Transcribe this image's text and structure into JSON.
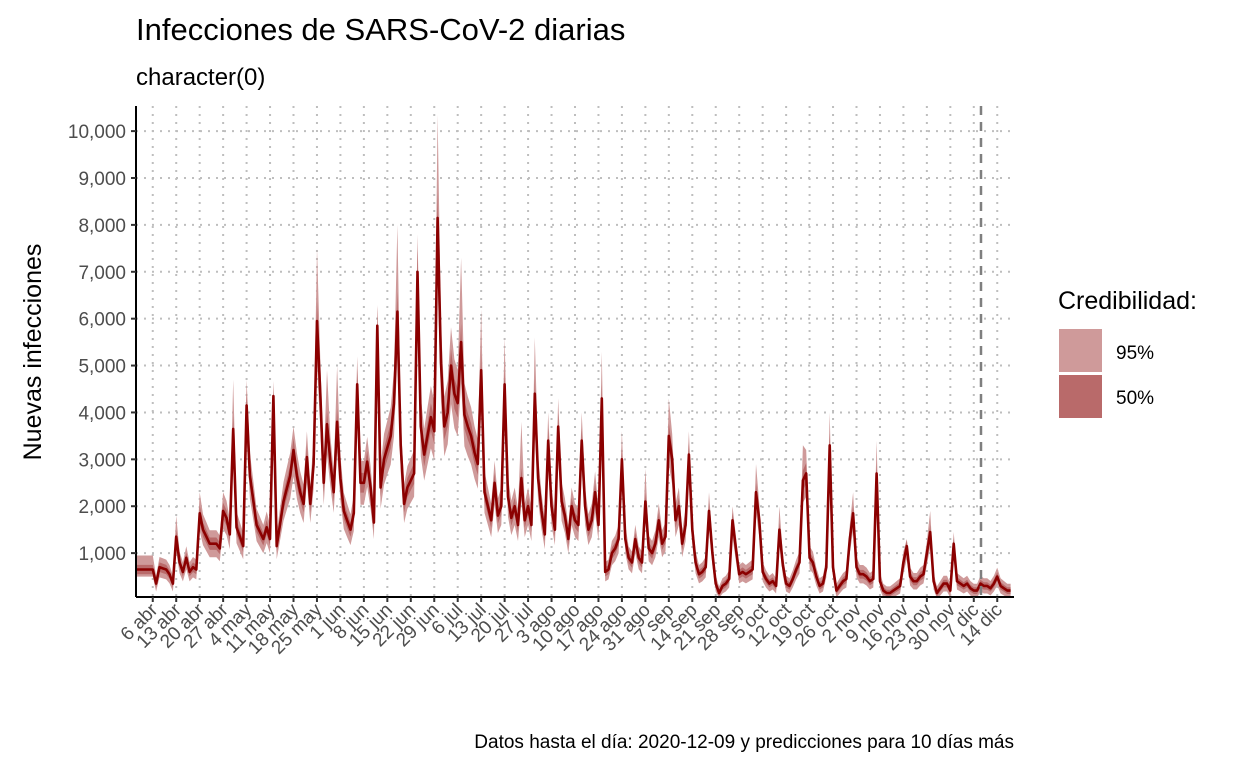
{
  "chart_data": {
    "type": "area",
    "title": "Infecciones de SARS-CoV-2 diarias",
    "subtitle": "character(0)",
    "ylabel": "Nuevas infecciones",
    "xlabel": "",
    "caption": "Datos hasta el día: 2020-12-09 y predicciones para 10 días más",
    "ylim": [
      0,
      10500
    ],
    "y_ticks": [
      1000,
      2000,
      3000,
      4000,
      5000,
      6000,
      7000,
      8000,
      9000,
      10000
    ],
    "y_tick_labels": [
      "1,000",
      "2,000",
      "3,000",
      "4,000",
      "5,000",
      "6,000",
      "7,000",
      "8,000",
      "9,000",
      "10,000"
    ],
    "x_start_date": "2020-04-01",
    "x_end_date": "2020-12-19",
    "x_ticks": [
      {
        "day": 5,
        "label": "6 abr"
      },
      {
        "day": 12,
        "label": "13 abr"
      },
      {
        "day": 19,
        "label": "20 abr"
      },
      {
        "day": 26,
        "label": "27 abr"
      },
      {
        "day": 33,
        "label": "4 may"
      },
      {
        "day": 40,
        "label": "11 may"
      },
      {
        "day": 47,
        "label": "18 may"
      },
      {
        "day": 54,
        "label": "25 may"
      },
      {
        "day": 61,
        "label": "1 jun"
      },
      {
        "day": 68,
        "label": "8 jun"
      },
      {
        "day": 75,
        "label": "15 jun"
      },
      {
        "day": 82,
        "label": "22 jun"
      },
      {
        "day": 89,
        "label": "29 jun"
      },
      {
        "day": 96,
        "label": "6 jul"
      },
      {
        "day": 103,
        "label": "13 jul"
      },
      {
        "day": 110,
        "label": "20 jul"
      },
      {
        "day": 117,
        "label": "27 jul"
      },
      {
        "day": 124,
        "label": "3 ago"
      },
      {
        "day": 131,
        "label": "10 ago"
      },
      {
        "day": 138,
        "label": "17 ago"
      },
      {
        "day": 145,
        "label": "24 ago"
      },
      {
        "day": 152,
        "label": "31 ago"
      },
      {
        "day": 159,
        "label": "7 sep"
      },
      {
        "day": 166,
        "label": "14 sep"
      },
      {
        "day": 173,
        "label": "21 sep"
      },
      {
        "day": 180,
        "label": "28 sep"
      },
      {
        "day": 187,
        "label": "5 oct"
      },
      {
        "day": 194,
        "label": "12 oct"
      },
      {
        "day": 201,
        "label": "19 oct"
      },
      {
        "day": 208,
        "label": "26 oct"
      },
      {
        "day": 215,
        "label": "2 nov"
      },
      {
        "day": 222,
        "label": "9 nov"
      },
      {
        "day": 229,
        "label": "16 nov"
      },
      {
        "day": 236,
        "label": "23 nov"
      },
      {
        "day": 243,
        "label": "30 nov"
      },
      {
        "day": 250,
        "label": "7 dic"
      },
      {
        "day": 257,
        "label": "14 dic"
      }
    ],
    "cutoff_day": 252,
    "legend": {
      "title": "Credibilidad:",
      "entries": [
        {
          "label": "95%",
          "color": "#cf9a9a"
        },
        {
          "label": "50%",
          "color": "#b96a6a"
        }
      ]
    },
    "colors": {
      "line": "#8b0000",
      "band95": "#cf9a9a",
      "band50": "#b96a6a",
      "cutoff": "#7f7f7f",
      "grid": "#bebebe"
    },
    "series_keypoints": [
      [
        0,
        650
      ],
      [
        5,
        650
      ],
      [
        6,
        350
      ],
      [
        7,
        700
      ],
      [
        9,
        650
      ],
      [
        10,
        550
      ],
      [
        11,
        350
      ],
      [
        12,
        1350
      ],
      [
        13,
        800
      ],
      [
        14,
        600
      ],
      [
        15,
        900
      ],
      [
        16,
        600
      ],
      [
        17,
        700
      ],
      [
        18,
        650
      ],
      [
        19,
        1850
      ],
      [
        20,
        1500
      ],
      [
        22,
        1200
      ],
      [
        24,
        1200
      ],
      [
        25,
        1100
      ],
      [
        26,
        1900
      ],
      [
        27,
        1750
      ],
      [
        28,
        1400
      ],
      [
        29,
        3650
      ],
      [
        30,
        1550
      ],
      [
        32,
        1150
      ],
      [
        33,
        4150
      ],
      [
        34,
        2650
      ],
      [
        36,
        1600
      ],
      [
        38,
        1300
      ],
      [
        39,
        1550
      ],
      [
        40,
        1300
      ],
      [
        41,
        4350
      ],
      [
        42,
        1150
      ],
      [
        44,
        2100
      ],
      [
        46,
        2650
      ],
      [
        47,
        3200
      ],
      [
        48,
        2650
      ],
      [
        49,
        2300
      ],
      [
        50,
        2050
      ],
      [
        51,
        3050
      ],
      [
        52,
        2050
      ],
      [
        53,
        2900
      ],
      [
        54,
        5950
      ],
      [
        55,
        4400
      ],
      [
        56,
        2500
      ],
      [
        57,
        3750
      ],
      [
        58,
        2950
      ],
      [
        59,
        2300
      ],
      [
        60,
        3800
      ],
      [
        61,
        2600
      ],
      [
        62,
        1900
      ],
      [
        63,
        1700
      ],
      [
        64,
        1500
      ],
      [
        65,
        1850
      ],
      [
        66,
        4600
      ],
      [
        67,
        2500
      ],
      [
        68,
        2500
      ],
      [
        69,
        2950
      ],
      [
        70,
        2400
      ],
      [
        71,
        1650
      ],
      [
        72,
        5850
      ],
      [
        73,
        2400
      ],
      [
        74,
        3000
      ],
      [
        76,
        3500
      ],
      [
        77,
        4200
      ],
      [
        78,
        6150
      ],
      [
        79,
        3300
      ],
      [
        80,
        2050
      ],
      [
        81,
        2400
      ],
      [
        83,
        2700
      ],
      [
        84,
        7000
      ],
      [
        85,
        3700
      ],
      [
        86,
        3100
      ],
      [
        87,
        3500
      ],
      [
        88,
        3900
      ],
      [
        89,
        3600
      ],
      [
        90,
        8150
      ],
      [
        91,
        5050
      ],
      [
        92,
        3700
      ],
      [
        93,
        4000
      ],
      [
        94,
        5000
      ],
      [
        95,
        4400
      ],
      [
        96,
        4200
      ],
      [
        97,
        5500
      ],
      [
        98,
        3950
      ],
      [
        99,
        3700
      ],
      [
        100,
        3500
      ],
      [
        101,
        3150
      ],
      [
        102,
        2900
      ],
      [
        103,
        4900
      ],
      [
        104,
        2300
      ],
      [
        105,
        2000
      ],
      [
        106,
        1700
      ],
      [
        107,
        2500
      ],
      [
        108,
        1800
      ],
      [
        109,
        2000
      ],
      [
        110,
        4600
      ],
      [
        111,
        2200
      ],
      [
        112,
        1750
      ],
      [
        113,
        2000
      ],
      [
        114,
        1600
      ],
      [
        115,
        2600
      ],
      [
        116,
        1700
      ],
      [
        117,
        2000
      ],
      [
        118,
        1600
      ],
      [
        119,
        4400
      ],
      [
        120,
        2600
      ],
      [
        121,
        1900
      ],
      [
        122,
        1400
      ],
      [
        123,
        3400
      ],
      [
        124,
        2000
      ],
      [
        125,
        1500
      ],
      [
        126,
        3700
      ],
      [
        127,
        2100
      ],
      [
        128,
        1800
      ],
      [
        129,
        1300
      ],
      [
        130,
        2000
      ],
      [
        131,
        1700
      ],
      [
        132,
        1600
      ],
      [
        133,
        3400
      ],
      [
        134,
        2000
      ],
      [
        135,
        1500
      ],
      [
        136,
        1700
      ],
      [
        137,
        2300
      ],
      [
        138,
        1600
      ],
      [
        139,
        4300
      ],
      [
        140,
        600
      ],
      [
        141,
        650
      ],
      [
        142,
        1000
      ],
      [
        143,
        1100
      ],
      [
        144,
        1300
      ],
      [
        145,
        3000
      ],
      [
        146,
        1300
      ],
      [
        147,
        900
      ],
      [
        148,
        800
      ],
      [
        149,
        1300
      ],
      [
        150,
        900
      ],
      [
        151,
        800
      ],
      [
        152,
        2100
      ],
      [
        153,
        1100
      ],
      [
        154,
        1000
      ],
      [
        155,
        1200
      ],
      [
        156,
        1700
      ],
      [
        157,
        1200
      ],
      [
        158,
        1350
      ],
      [
        159,
        3500
      ],
      [
        160,
        3000
      ],
      [
        161,
        1700
      ],
      [
        162,
        2000
      ],
      [
        163,
        1200
      ],
      [
        164,
        1600
      ],
      [
        165,
        3100
      ],
      [
        166,
        1500
      ],
      [
        167,
        800
      ],
      [
        168,
        550
      ],
      [
        169,
        600
      ],
      [
        170,
        700
      ],
      [
        171,
        1900
      ],
      [
        172,
        1000
      ],
      [
        173,
        350
      ],
      [
        174,
        150
      ],
      [
        175,
        300
      ],
      [
        176,
        350
      ],
      [
        177,
        450
      ],
      [
        178,
        1700
      ],
      [
        179,
        1100
      ],
      [
        180,
        550
      ],
      [
        181,
        600
      ],
      [
        182,
        550
      ],
      [
        183,
        600
      ],
      [
        184,
        650
      ],
      [
        185,
        2300
      ],
      [
        186,
        1700
      ],
      [
        187,
        600
      ],
      [
        188,
        450
      ],
      [
        189,
        350
      ],
      [
        190,
        400
      ],
      [
        191,
        300
      ],
      [
        192,
        1500
      ],
      [
        193,
        750
      ],
      [
        194,
        350
      ],
      [
        195,
        300
      ],
      [
        196,
        450
      ],
      [
        197,
        650
      ],
      [
        198,
        800
      ],
      [
        199,
        2550
      ],
      [
        200,
        2700
      ],
      [
        201,
        900
      ],
      [
        202,
        800
      ],
      [
        203,
        500
      ],
      [
        204,
        300
      ],
      [
        205,
        350
      ],
      [
        206,
        700
      ],
      [
        207,
        3300
      ],
      [
        208,
        700
      ],
      [
        209,
        200
      ],
      [
        210,
        300
      ],
      [
        211,
        400
      ],
      [
        212,
        450
      ],
      [
        213,
        1300
      ],
      [
        214,
        1850
      ],
      [
        215,
        700
      ],
      [
        216,
        550
      ],
      [
        217,
        550
      ],
      [
        218,
        500
      ],
      [
        219,
        400
      ],
      [
        220,
        450
      ],
      [
        221,
        2700
      ],
      [
        222,
        400
      ],
      [
        223,
        200
      ],
      [
        224,
        150
      ],
      [
        225,
        150
      ],
      [
        226,
        200
      ],
      [
        227,
        250
      ],
      [
        228,
        300
      ],
      [
        229,
        800
      ],
      [
        230,
        1150
      ],
      [
        231,
        500
      ],
      [
        232,
        400
      ],
      [
        233,
        400
      ],
      [
        234,
        500
      ],
      [
        235,
        550
      ],
      [
        236,
        1000
      ],
      [
        237,
        1450
      ],
      [
        238,
        400
      ],
      [
        239,
        150
      ],
      [
        240,
        250
      ],
      [
        241,
        350
      ],
      [
        242,
        350
      ],
      [
        243,
        200
      ],
      [
        244,
        1200
      ],
      [
        245,
        400
      ],
      [
        246,
        350
      ],
      [
        247,
        300
      ],
      [
        248,
        350
      ],
      [
        249,
        250
      ],
      [
        250,
        200
      ],
      [
        251,
        200
      ],
      [
        252,
        350
      ],
      [
        253,
        300
      ],
      [
        254,
        300
      ],
      [
        255,
        250
      ],
      [
        256,
        350
      ],
      [
        257,
        500
      ],
      [
        258,
        300
      ],
      [
        259,
        250
      ],
      [
        260,
        200
      ],
      [
        261,
        200
      ]
    ],
    "peak_upper_95": [
      [
        12,
        1800
      ],
      [
        19,
        2300
      ],
      [
        26,
        2300
      ],
      [
        29,
        4700
      ],
      [
        33,
        4700
      ],
      [
        41,
        4500
      ],
      [
        47,
        3700
      ],
      [
        54,
        7500
      ],
      [
        57,
        4900
      ],
      [
        60,
        5000
      ],
      [
        66,
        5200
      ],
      [
        72,
        6300
      ],
      [
        78,
        8000
      ],
      [
        84,
        7800
      ],
      [
        90,
        10350
      ],
      [
        97,
        7300
      ],
      [
        103,
        6200
      ],
      [
        110,
        5600
      ],
      [
        115,
        3800
      ],
      [
        119,
        5600
      ],
      [
        123,
        4000
      ],
      [
        126,
        4300
      ],
      [
        133,
        4000
      ],
      [
        139,
        5300
      ],
      [
        145,
        3600
      ],
      [
        152,
        2800
      ],
      [
        159,
        4300
      ],
      [
        165,
        3600
      ],
      [
        171,
        2300
      ],
      [
        178,
        2000
      ],
      [
        185,
        2900
      ],
      [
        192,
        2000
      ],
      [
        199,
        3300
      ],
      [
        207,
        4000
      ],
      [
        214,
        2300
      ],
      [
        221,
        3400
      ],
      [
        230,
        1300
      ],
      [
        237,
        1900
      ],
      [
        244,
        1450
      ]
    ]
  }
}
